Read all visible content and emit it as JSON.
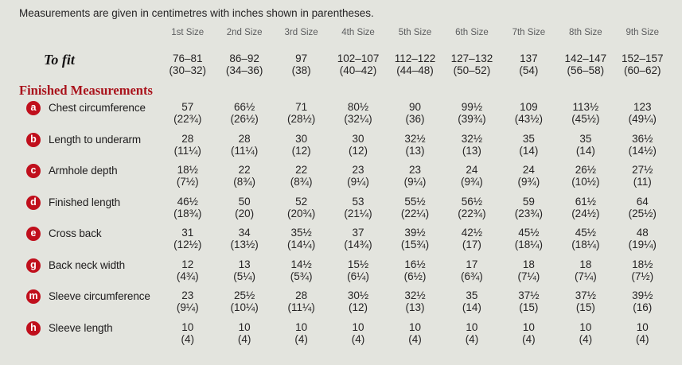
{
  "note": "Measurements are given in centimetres with inches shown in parentheses.",
  "sizes": [
    "1st Size",
    "2nd Size",
    "3rd Size",
    "4th Size",
    "5th Size",
    "6th Size",
    "7th Size",
    "8th Size",
    "9th Size"
  ],
  "to_fit": {
    "label": "To fit",
    "cm": [
      "76–81",
      "86–92",
      "97",
      "102–107",
      "112–122",
      "127–132",
      "137",
      "142–147",
      "152–157"
    ],
    "in": [
      "(30–32)",
      "(34–36)",
      "(38)",
      "(40–42)",
      "(44–48)",
      "(50–52)",
      "(54)",
      "(56–58)",
      "(60–62)"
    ]
  },
  "section_title": "Finished Measurements",
  "rows": [
    {
      "key": "a",
      "label": "Chest circumference",
      "cm": [
        "57",
        "66½",
        "71",
        "80½",
        "90",
        "99½",
        "109",
        "113½",
        "123"
      ],
      "in": [
        "(22¾)",
        "(26½)",
        "(28½)",
        "(32¼)",
        "(36)",
        "(39¾)",
        "(43½)",
        "(45½)",
        "(49¼)"
      ]
    },
    {
      "key": "b",
      "label": "Length to underarm",
      "cm": [
        "28",
        "28",
        "30",
        "30",
        "32½",
        "32½",
        "35",
        "35",
        "36½"
      ],
      "in": [
        "(11¼)",
        "(11¼)",
        "(12)",
        "(12)",
        "(13)",
        "(13)",
        "(14)",
        "(14)",
        "(14½)"
      ]
    },
    {
      "key": "c",
      "label": "Armhole depth",
      "cm": [
        "18½",
        "22",
        "22",
        "23",
        "23",
        "24",
        "24",
        "26½",
        "27½"
      ],
      "in": [
        "(7½)",
        "(8¾)",
        "(8¾)",
        "(9¼)",
        "(9¼)",
        "(9¾)",
        "(9¾)",
        "(10½)",
        "(11)"
      ]
    },
    {
      "key": "d",
      "label": "Finished length",
      "cm": [
        "46½",
        "50",
        "52",
        "53",
        "55½",
        "56½",
        "59",
        "61½",
        "64"
      ],
      "in": [
        "(18¾)",
        "(20)",
        "(20¾)",
        "(21¼)",
        "(22¼)",
        "(22¾)",
        "(23¾)",
        "(24½)",
        "(25½)"
      ]
    },
    {
      "key": "e",
      "label": "Cross back",
      "cm": [
        "31",
        "34",
        "35½",
        "37",
        "39½",
        "42½",
        "45½",
        "45½",
        "48"
      ],
      "in": [
        "(12½)",
        "(13½)",
        "(14¼)",
        "(14¾)",
        "(15¾)",
        "(17)",
        "(18¼)",
        "(18¼)",
        "(19¼)"
      ]
    },
    {
      "key": "g",
      "label": "Back neck width",
      "cm": [
        "12",
        "13",
        "14½",
        "15½",
        "16½",
        "17",
        "18",
        "18",
        "18½"
      ],
      "in": [
        "(4¾)",
        "(5¼)",
        "(5¾)",
        "(6¼)",
        "(6½)",
        "(6¾)",
        "(7¼)",
        "(7¼)",
        "(7½)"
      ]
    },
    {
      "key": "m",
      "label": "Sleeve circumference",
      "cm": [
        "23",
        "25½",
        "28",
        "30½",
        "32½",
        "35",
        "37½",
        "37½",
        "39½"
      ],
      "in": [
        "(9¼)",
        "(10¼)",
        "(11¼)",
        "(12)",
        "(13)",
        "(14)",
        "(15)",
        "(15)",
        "(16)"
      ]
    },
    {
      "key": "h",
      "label": "Sleeve length",
      "cm": [
        "10",
        "10",
        "10",
        "10",
        "10",
        "10",
        "10",
        "10",
        "10"
      ],
      "in": [
        "(4)",
        "(4)",
        "(4)",
        "(4)",
        "(4)",
        "(4)",
        "(4)",
        "(4)",
        "(4)"
      ]
    }
  ],
  "colors": {
    "background": "#e3e4de",
    "text": "#262425",
    "muted": "#5b5c5e",
    "accent_red": "#a9121b",
    "badge_red": "#c00f1c",
    "badge_text": "#ffffff"
  }
}
